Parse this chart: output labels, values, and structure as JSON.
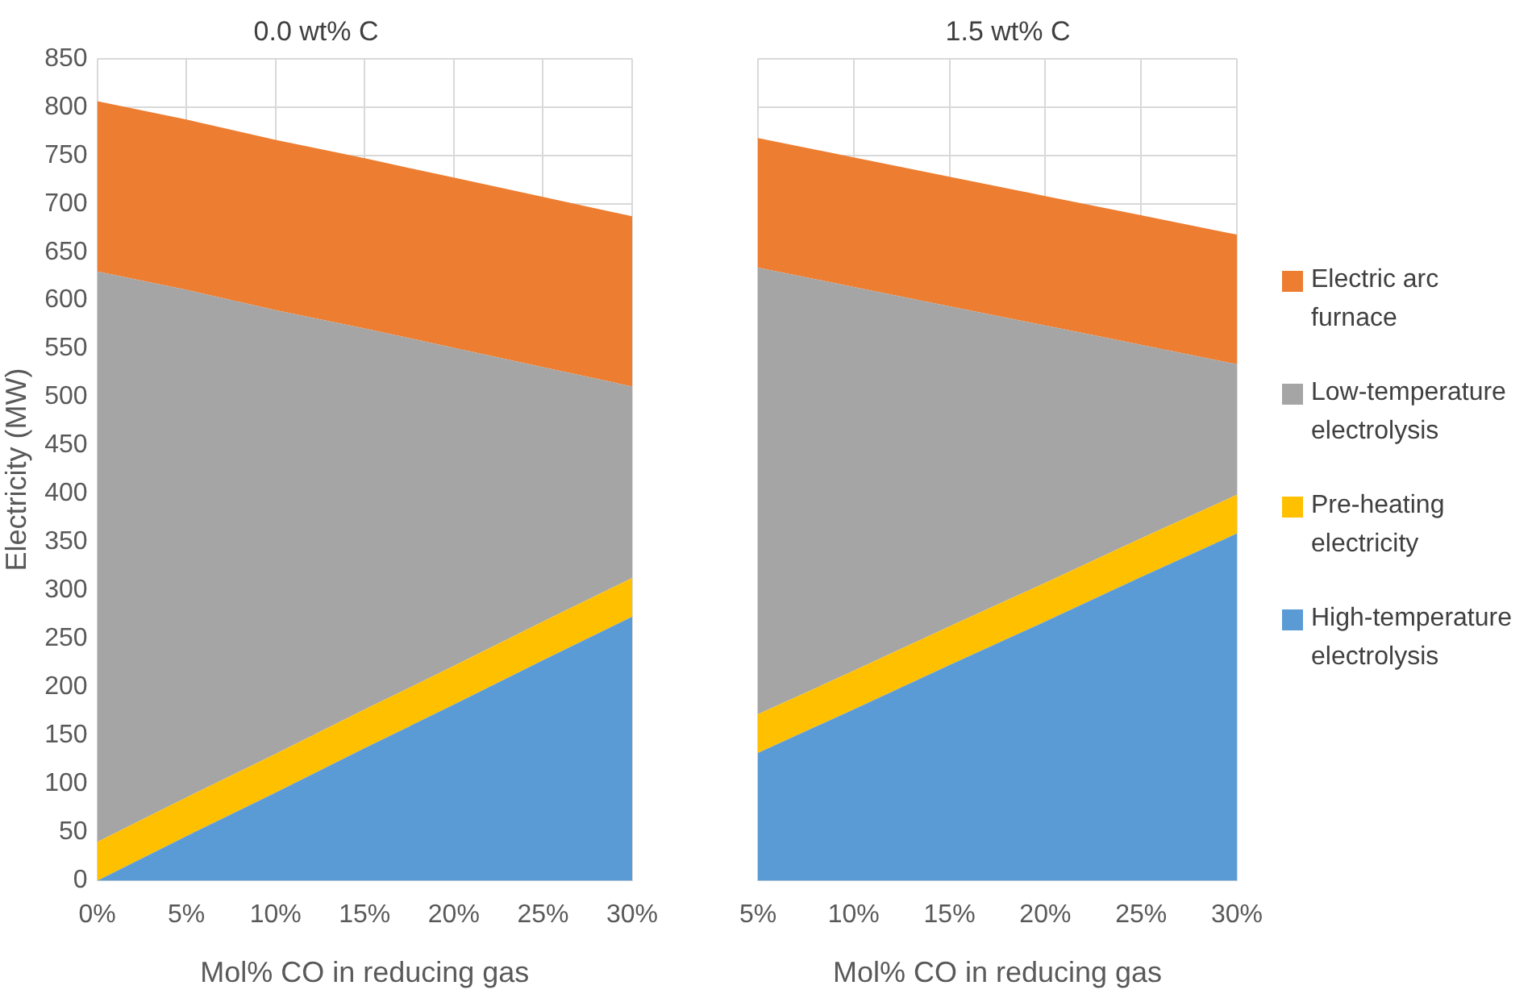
{
  "chart_data": [
    {
      "type": "area",
      "stacked": true,
      "title": "0.0 wt% C",
      "xlabel": "Mol% CO in reducing gas",
      "ylabel": "Electricity (MW)",
      "categories": [
        "0%",
        "5%",
        "10%",
        "15%",
        "20%",
        "25%",
        "30%"
      ],
      "ylim": [
        0,
        850
      ],
      "yticks": [
        0,
        50,
        100,
        150,
        200,
        250,
        300,
        350,
        400,
        450,
        500,
        550,
        600,
        650,
        700,
        750,
        800,
        850
      ],
      "grid": true,
      "legend": false,
      "series": [
        {
          "color": "#5b9bd5",
          "values": [
            0,
            46,
            91,
            137,
            182,
            228,
            273
          ]
        },
        {
          "color": "#ffc000",
          "values": [
            40,
            40,
            40,
            40,
            40,
            40,
            40
          ]
        },
        {
          "color": "#a5a5a5",
          "values": [
            590,
            525,
            459,
            394,
            329,
            263,
            198
          ]
        },
        {
          "color": "#ed7d31",
          "values": [
            176,
            176,
            176,
            176,
            176,
            176,
            176
          ]
        }
      ]
    },
    {
      "type": "area",
      "stacked": true,
      "title": "1.5 wt% C",
      "xlabel": "Mol% CO in reducing gas",
      "categories": [
        "5%",
        "10%",
        "15%",
        "20%",
        "25%",
        "30%"
      ],
      "ylim": [
        0,
        850
      ],
      "yticks": [
        0,
        50,
        100,
        150,
        200,
        250,
        300,
        350,
        400,
        450,
        500,
        550,
        600,
        650,
        700,
        750,
        800,
        850
      ],
      "grid": true,
      "legend": "right",
      "tick_labels": "x",
      "series": [
        {
          "name": "High-temperature electrolysis",
          "color": "#5b9bd5",
          "values": [
            132,
            177,
            223,
            268,
            314,
            359
          ]
        },
        {
          "name": "Pre-heating electricity",
          "color": "#ffc000",
          "values": [
            40,
            40,
            40,
            40,
            40,
            40
          ]
        },
        {
          "name": "Low-temperature electrolysis",
          "color": "#a5a5a5",
          "values": [
            462,
            397,
            331,
            266,
            200,
            135
          ]
        },
        {
          "name": "Electric arc furnace",
          "color": "#ed7d31",
          "values": [
            134,
            134,
            134,
            134,
            134,
            134
          ]
        }
      ]
    }
  ]
}
